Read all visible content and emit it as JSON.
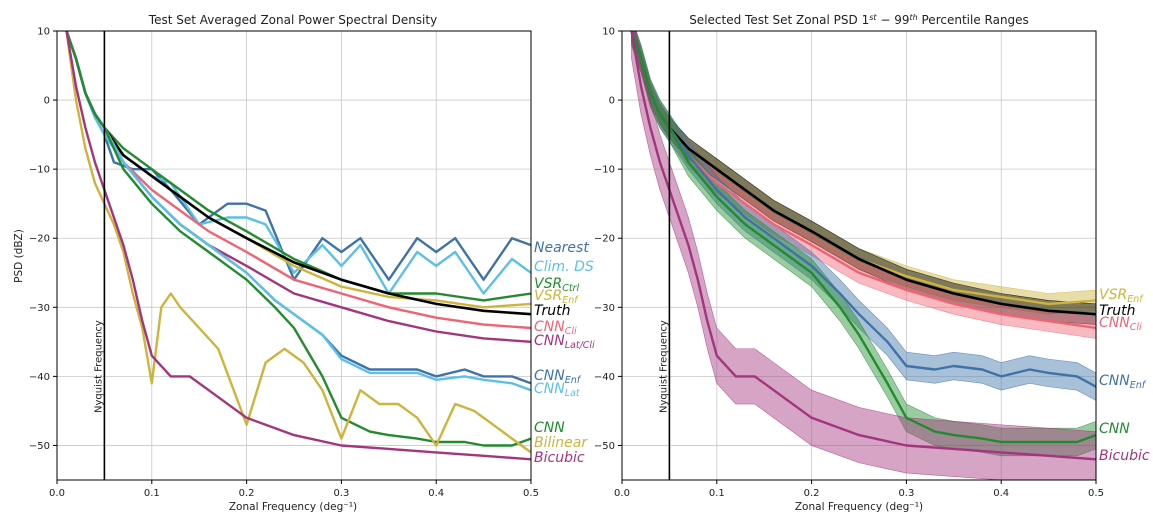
{
  "chart_data": [
    {
      "type": "line",
      "title": "Test Set Averaged Zonal Power Spectral Density",
      "xlabel": "Zonal Frequency (deg⁻¹)",
      "ylabel": "PSD (dBZ)",
      "xlim": [
        0,
        0.5
      ],
      "ylim": [
        -55,
        10
      ],
      "xticks": [
        "0.0",
        "0.1",
        "0.2",
        "0.3",
        "0.4",
        "0.5"
      ],
      "yticks": [
        "10",
        "0",
        "−10",
        "−20",
        "−30",
        "−40",
        "−50"
      ],
      "grid": true,
      "vline": {
        "x": 0.05,
        "label": "Nyquist Frequency"
      },
      "series": [
        {
          "name": "Nearest",
          "color": "#3f73a8",
          "x": [
            0.01,
            0.02,
            0.03,
            0.04,
            0.05,
            0.06,
            0.08,
            0.1,
            0.12,
            0.15,
            0.18,
            0.2,
            0.22,
            0.25,
            0.28,
            0.3,
            0.32,
            0.35,
            0.38,
            0.4,
            0.42,
            0.45,
            0.48,
            0.5
          ],
          "y": [
            10,
            6,
            1,
            -2.5,
            -5,
            -9,
            -10,
            -10,
            -13,
            -18,
            -15,
            -15,
            -16,
            -26,
            -20,
            -22,
            -20,
            -26,
            -20,
            -22,
            -20,
            -26,
            -20,
            -21
          ]
        },
        {
          "name": "Clim. DS",
          "color": "#5bc0e6",
          "x": [
            0.01,
            0.02,
            0.03,
            0.04,
            0.05,
            0.06,
            0.08,
            0.1,
            0.12,
            0.15,
            0.18,
            0.2,
            0.22,
            0.25,
            0.28,
            0.3,
            0.32,
            0.35,
            0.38,
            0.4,
            0.42,
            0.45,
            0.48,
            0.5
          ],
          "y": [
            10,
            6,
            1,
            -2.5,
            -5,
            -7,
            -9,
            -11,
            -12,
            -18,
            -17,
            -17,
            -18,
            -25,
            -21,
            -24,
            -21,
            -28,
            -22,
            -24,
            -22,
            -28,
            -23,
            -25
          ]
        },
        {
          "name": "VSR_Ctrl",
          "label_main": "VSR",
          "label_sub": "Ctrl",
          "color": "#228b2e",
          "x": [
            0.01,
            0.02,
            0.03,
            0.04,
            0.05,
            0.07,
            0.1,
            0.13,
            0.16,
            0.2,
            0.25,
            0.3,
            0.35,
            0.4,
            0.45,
            0.5
          ],
          "y": [
            10,
            6,
            1,
            -2,
            -4,
            -7,
            -10,
            -13,
            -16,
            -19,
            -23,
            -26,
            -28,
            -28,
            -29,
            -28
          ]
        },
        {
          "name": "VSR_Enf",
          "label_main": "VSR",
          "label_sub": "Enf",
          "color": "#cdb43c",
          "x": [
            0.01,
            0.02,
            0.03,
            0.04,
            0.05,
            0.07,
            0.1,
            0.13,
            0.16,
            0.2,
            0.25,
            0.3,
            0.35,
            0.4,
            0.45,
            0.5
          ],
          "y": [
            10,
            6,
            1,
            -2,
            -4,
            -8,
            -11,
            -14,
            -17,
            -20,
            -24,
            -27,
            -28.5,
            -29,
            -30,
            -29.5
          ]
        },
        {
          "name": "Truth",
          "color": "#000000",
          "x": [
            0.01,
            0.02,
            0.03,
            0.04,
            0.05,
            0.07,
            0.1,
            0.13,
            0.16,
            0.2,
            0.25,
            0.3,
            0.35,
            0.4,
            0.45,
            0.5
          ],
          "y": [
            10,
            6,
            1,
            -2,
            -4,
            -8,
            -11,
            -14,
            -17,
            -20,
            -23.5,
            -26,
            -28,
            -29.5,
            -30.5,
            -31
          ]
        },
        {
          "name": "CNN_Cli",
          "label_main": "CNN",
          "label_sub": "Cli",
          "color": "#ef6475",
          "x": [
            0.01,
            0.02,
            0.03,
            0.04,
            0.05,
            0.07,
            0.1,
            0.13,
            0.16,
            0.2,
            0.25,
            0.3,
            0.35,
            0.4,
            0.45,
            0.5
          ],
          "y": [
            10,
            6,
            1,
            -2,
            -4,
            -9,
            -13,
            -16,
            -19,
            -22,
            -26,
            -28,
            -30,
            -31.5,
            -32.5,
            -33
          ]
        },
        {
          "name": "CNN_Lat/Cli",
          "label_main": "CNN",
          "label_sub": "Lat/Cli",
          "color": "#a3357e",
          "x": [
            0.01,
            0.02,
            0.03,
            0.04,
            0.05,
            0.07,
            0.1,
            0.13,
            0.16,
            0.2,
            0.25,
            0.3,
            0.35,
            0.4,
            0.45,
            0.5
          ],
          "y": [
            10,
            6,
            1,
            -2,
            -4,
            -9,
            -14,
            -18,
            -21,
            -24,
            -28,
            -30,
            -32,
            -33.5,
            -34.5,
            -35
          ]
        },
        {
          "name": "CNN_Enf",
          "label_main": "CNN",
          "label_sub": "Enf",
          "color": "#3f73a8",
          "x": [
            0.01,
            0.02,
            0.03,
            0.04,
            0.05,
            0.07,
            0.1,
            0.13,
            0.16,
            0.2,
            0.23,
            0.25,
            0.28,
            0.3,
            0.33,
            0.35,
            0.38,
            0.4,
            0.43,
            0.45,
            0.48,
            0.5
          ],
          "y": [
            10,
            6,
            1,
            -2,
            -4,
            -9,
            -14,
            -18,
            -21,
            -25,
            -29,
            -31,
            -34,
            -37,
            -39,
            -39,
            -39,
            -40,
            -39,
            -40,
            -40,
            -41
          ]
        },
        {
          "name": "CNN_Lat",
          "label_main": "CNN",
          "label_sub": "Lat",
          "color": "#5bc0e6",
          "x": [
            0.01,
            0.02,
            0.03,
            0.04,
            0.05,
            0.07,
            0.1,
            0.13,
            0.16,
            0.2,
            0.23,
            0.25,
            0.28,
            0.3,
            0.33,
            0.35,
            0.38,
            0.4,
            0.43,
            0.45,
            0.48,
            0.5
          ],
          "y": [
            10,
            6,
            1,
            -2,
            -4,
            -9,
            -14,
            -18,
            -21,
            -25,
            -29,
            -31,
            -34,
            -37.5,
            -39.5,
            -39.5,
            -39.5,
            -40.5,
            -40,
            -40.5,
            -41,
            -42
          ]
        },
        {
          "name": "CNN",
          "color": "#228b2e",
          "x": [
            0.01,
            0.02,
            0.03,
            0.04,
            0.05,
            0.07,
            0.1,
            0.13,
            0.16,
            0.2,
            0.23,
            0.25,
            0.28,
            0.3,
            0.33,
            0.35,
            0.38,
            0.4,
            0.43,
            0.45,
            0.48,
            0.5
          ],
          "y": [
            10,
            6,
            1,
            -2,
            -4,
            -10,
            -15,
            -19,
            -22,
            -26,
            -30,
            -33,
            -40,
            -46,
            -48,
            -48.5,
            -49,
            -49.5,
            -49.5,
            -50,
            -50,
            -49
          ]
        },
        {
          "name": "Bilinear",
          "color": "#cdb43c",
          "x": [
            0.01,
            0.02,
            0.03,
            0.04,
            0.05,
            0.06,
            0.07,
            0.08,
            0.09,
            0.1,
            0.11,
            0.12,
            0.13,
            0.15,
            0.17,
            0.2,
            0.22,
            0.24,
            0.26,
            0.28,
            0.3,
            0.32,
            0.34,
            0.36,
            0.38,
            0.4,
            0.42,
            0.44,
            0.46,
            0.48,
            0.5
          ],
          "y": [
            10,
            0,
            -7,
            -12,
            -15,
            -18,
            -22,
            -28,
            -33,
            -41,
            -30,
            -28,
            -30,
            -33,
            -36,
            -47,
            -38,
            -36,
            -38,
            -42,
            -49,
            -42,
            -44,
            -44,
            -46,
            -50,
            -44,
            -45,
            -47,
            -49,
            -51
          ]
        },
        {
          "name": "Bicubic",
          "color": "#a3357e",
          "x": [
            0.01,
            0.02,
            0.03,
            0.04,
            0.05,
            0.06,
            0.07,
            0.08,
            0.09,
            0.1,
            0.12,
            0.14,
            0.16,
            0.2,
            0.25,
            0.3,
            0.35,
            0.4,
            0.45,
            0.5
          ],
          "y": [
            10,
            2,
            -4,
            -9,
            -13,
            -17,
            -21,
            -26,
            -32,
            -37,
            -40,
            -40,
            -42,
            -46,
            -48.5,
            -50,
            -50.5,
            -51,
            -51.5,
            -52
          ]
        }
      ]
    },
    {
      "type": "line",
      "title": "Selected Test Set Zonal PSD 1st − 99th Percentile Ranges",
      "title_parts": [
        "Selected Test Set Zonal PSD 1",
        "st",
        " − 99",
        "th",
        " Percentile Ranges"
      ],
      "xlabel": "Zonal Frequency (deg⁻¹)",
      "ylabel": "",
      "xlim": [
        0,
        0.5
      ],
      "ylim": [
        -55,
        10
      ],
      "xticks": [
        "0.0",
        "0.1",
        "0.2",
        "0.3",
        "0.4",
        "0.5"
      ],
      "yticks": [
        "10",
        "0",
        "−10",
        "−20",
        "−30",
        "−40",
        "−50"
      ],
      "grid": true,
      "vline": {
        "x": 0.05,
        "label": "Nyquist Frequency"
      },
      "series": [
        {
          "name": "VSR_Enf",
          "label_main": "VSR",
          "label_sub": "Enf",
          "color": "#cdb43c",
          "x": [
            0.01,
            0.02,
            0.03,
            0.04,
            0.05,
            0.07,
            0.1,
            0.13,
            0.16,
            0.2,
            0.25,
            0.3,
            0.35,
            0.4,
            0.45,
            0.5
          ],
          "y": [
            10,
            6,
            1,
            -2,
            -4,
            -7,
            -10,
            -13,
            -16,
            -19,
            -23,
            -25.5,
            -27.5,
            -28.5,
            -29.5,
            -29
          ],
          "band": 1.5
        },
        {
          "name": "Truth",
          "color": "#000000",
          "x": [
            0.01,
            0.02,
            0.03,
            0.04,
            0.05,
            0.07,
            0.1,
            0.13,
            0.16,
            0.2,
            0.25,
            0.3,
            0.35,
            0.4,
            0.45,
            0.5
          ],
          "y": [
            10,
            6,
            1,
            -2,
            -4,
            -7,
            -10,
            -13,
            -16,
            -19,
            -23,
            -26,
            -28,
            -29.5,
            -30.5,
            -31
          ],
          "band": 1.5
        },
        {
          "name": "CNN_Cli",
          "label_main": "CNN",
          "label_sub": "Cli",
          "color": "#ef6475",
          "x": [
            0.01,
            0.02,
            0.03,
            0.04,
            0.05,
            0.07,
            0.1,
            0.13,
            0.16,
            0.2,
            0.25,
            0.3,
            0.35,
            0.4,
            0.45,
            0.5
          ],
          "y": [
            10,
            6,
            1,
            -2,
            -4,
            -8,
            -12,
            -15,
            -18,
            -21,
            -25,
            -27.5,
            -29.5,
            -31,
            -32,
            -33
          ],
          "band": 1.5
        },
        {
          "name": "CNN_Enf",
          "label_main": "CNN",
          "label_sub": "Enf",
          "color": "#3f73a8",
          "x": [
            0.01,
            0.02,
            0.03,
            0.04,
            0.05,
            0.07,
            0.1,
            0.13,
            0.16,
            0.2,
            0.23,
            0.25,
            0.28,
            0.3,
            0.33,
            0.35,
            0.38,
            0.4,
            0.43,
            0.45,
            0.48,
            0.5
          ],
          "y": [
            10,
            6,
            1,
            -2,
            -4,
            -8,
            -13,
            -17,
            -20,
            -24,
            -28,
            -31,
            -35,
            -38.5,
            -39,
            -38.5,
            -39,
            -40,
            -39,
            -39.5,
            -40,
            -41.5
          ],
          "band": 2
        },
        {
          "name": "CNN",
          "color": "#228b2e",
          "x": [
            0.01,
            0.02,
            0.03,
            0.04,
            0.05,
            0.07,
            0.1,
            0.13,
            0.16,
            0.2,
            0.23,
            0.25,
            0.28,
            0.3,
            0.33,
            0.35,
            0.38,
            0.4,
            0.43,
            0.45,
            0.48,
            0.5
          ],
          "y": [
            10,
            6,
            1,
            -2,
            -4,
            -9,
            -14,
            -18,
            -21,
            -25,
            -30,
            -34,
            -41,
            -46,
            -48,
            -48.5,
            -49,
            -49.5,
            -49.5,
            -49.5,
            -49.5,
            -48.5
          ],
          "band": 2
        },
        {
          "name": "Bicubic",
          "color": "#a3357e",
          "x": [
            0.01,
            0.02,
            0.03,
            0.04,
            0.05,
            0.06,
            0.07,
            0.08,
            0.09,
            0.1,
            0.12,
            0.14,
            0.16,
            0.2,
            0.25,
            0.3,
            0.35,
            0.4,
            0.45,
            0.5
          ],
          "y": [
            10,
            2,
            -4,
            -9,
            -13,
            -17,
            -21,
            -26,
            -32,
            -37,
            -40,
            -40,
            -42,
            -46,
            -48.5,
            -50,
            -50.5,
            -51,
            -51.5,
            -52
          ],
          "band": 4
        }
      ]
    }
  ]
}
